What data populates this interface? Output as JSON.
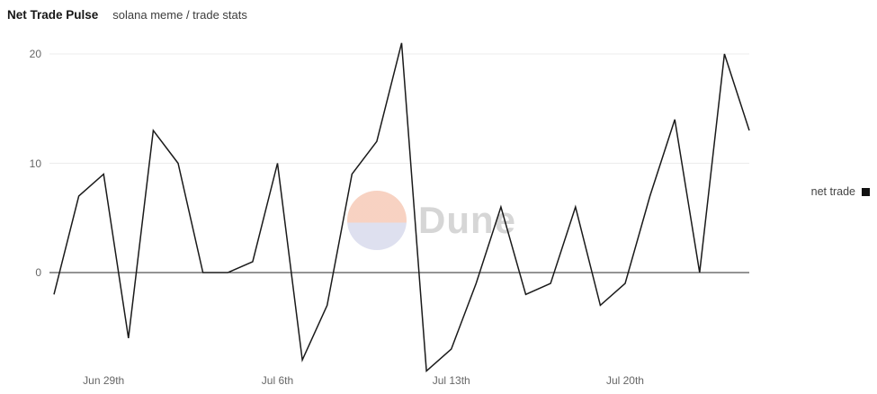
{
  "header": {
    "title": "Net Trade Pulse",
    "subtitle": "solana meme / trade stats"
  },
  "watermark": {
    "text": "Dune"
  },
  "legend": {
    "label": "net trade"
  },
  "colors": {
    "line": "#1a1a1a",
    "zero_axis": "#2a2a2a",
    "gridline": "#ececec",
    "tick_text": "#666666",
    "legend_swatch": "#111111",
    "watermark_top": "#f7d0bf",
    "watermark_bottom": "#dcdeee"
  },
  "chart_data": {
    "type": "line",
    "title": "Net Trade Pulse",
    "subtitle": "solana meme / trade stats",
    "series": [
      {
        "name": "net trade",
        "values": [
          -2,
          7,
          9,
          -6,
          13,
          10,
          0,
          0,
          1,
          10,
          -8,
          -3,
          9,
          12,
          21,
          -9,
          -7,
          -1,
          6,
          -2,
          -1,
          6,
          -3,
          -1,
          7,
          14,
          0,
          20,
          13
        ]
      }
    ],
    "x_ticks": [
      {
        "index": 2,
        "label": "Jun 29th"
      },
      {
        "index": 9,
        "label": "Jul 6th"
      },
      {
        "index": 16,
        "label": "Jul 13th"
      },
      {
        "index": 23,
        "label": "Jul 20th"
      }
    ],
    "y_ticks": [
      0,
      10,
      20
    ],
    "ylim": [
      -10,
      22
    ],
    "grid": "horizontal",
    "legend_position": "right",
    "line_color": "#1a1a1a"
  }
}
